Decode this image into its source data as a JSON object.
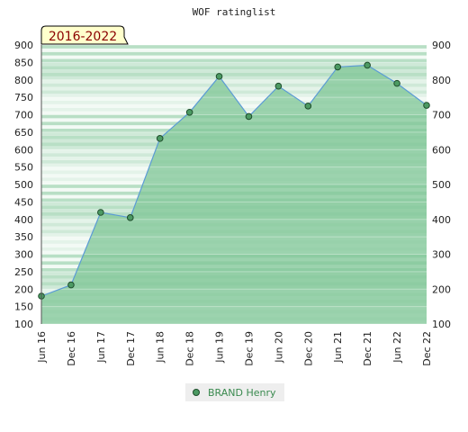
{
  "chart_data": {
    "type": "area",
    "title": "WOF ratinglist",
    "badge": "2016-2022",
    "categories": [
      "Jun 16",
      "Dec 16",
      "Jun 17",
      "Dec 17",
      "Jun 18",
      "Dec 18",
      "Jun 19",
      "Dec 19",
      "Jun 20",
      "Dec 20",
      "Jun 21",
      "Dec 21",
      "Jun 22",
      "Dec 22"
    ],
    "series": [
      {
        "name": "BRAND Henry",
        "values": [
          180,
          212,
          420,
          405,
          632,
          707,
          810,
          695,
          782,
          725,
          837,
          842,
          790,
          727
        ]
      }
    ],
    "ylim": [
      100,
      900
    ],
    "yticks": [
      100,
      150,
      200,
      250,
      300,
      350,
      400,
      450,
      500,
      550,
      600,
      650,
      700,
      750,
      800,
      850,
      900
    ],
    "yticks_right": [
      100,
      200,
      300,
      400,
      500,
      600,
      700,
      800,
      900
    ],
    "xlabel": "",
    "ylabel": "",
    "legend_position": "bottom-center",
    "colors": {
      "line": "#5b9bd5",
      "fill": "#7fc695",
      "marker": "#4c9a63",
      "legend_text": "#3a8a4f",
      "badge_bg": "#ffffcc",
      "badge_text": "#8b0000"
    }
  }
}
